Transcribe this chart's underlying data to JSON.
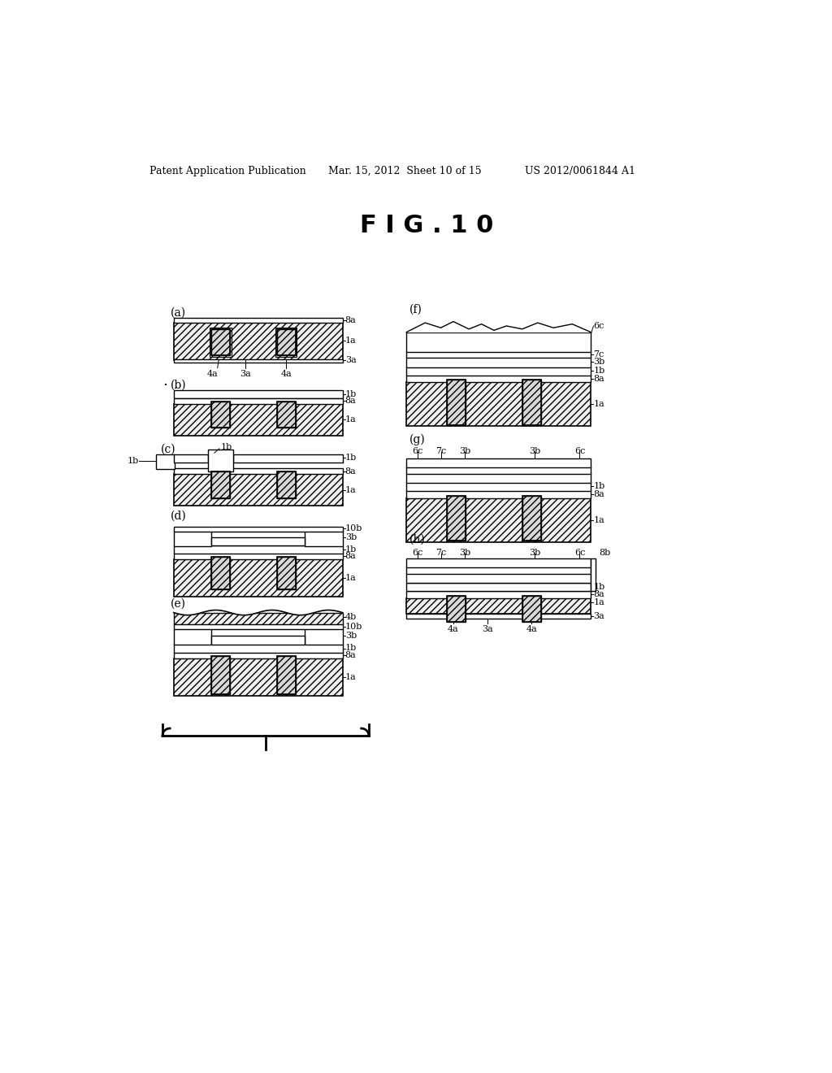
{
  "title": "F I G . 1 0",
  "header_left": "Patent Application Publication",
  "header_mid": "Mar. 15, 2012  Sheet 10 of 15",
  "header_right": "US 2012/0061844 A1",
  "bg_color": "#ffffff"
}
